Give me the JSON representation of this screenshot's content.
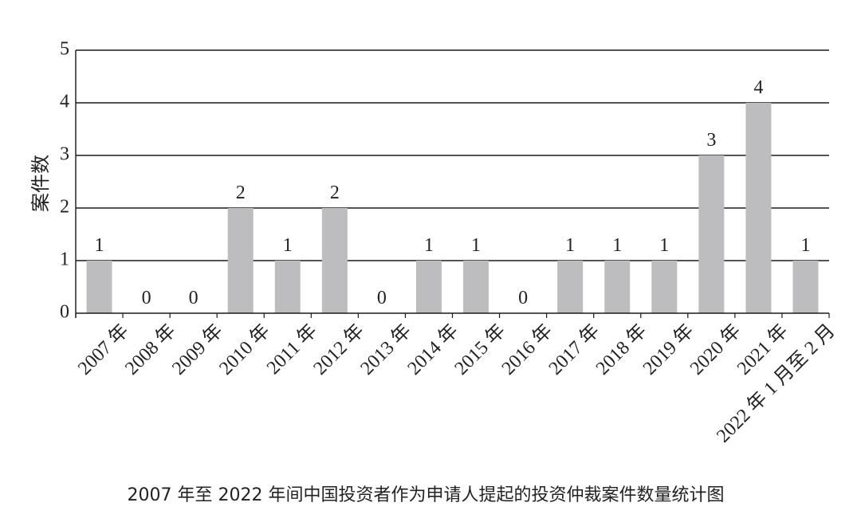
{
  "chart_data": {
    "type": "bar",
    "categories": [
      "2007 年",
      "2008 年",
      "2009 年",
      "2010 年",
      "2011 年",
      "2012 年",
      "2013 年",
      "2014 年",
      "2015 年",
      "2016 年",
      "2017 年",
      "2018 年",
      "2019 年",
      "2020 年",
      "2021 年",
      "2022 年 1 月至 2 月"
    ],
    "values": [
      1,
      0,
      0,
      2,
      1,
      2,
      0,
      1,
      1,
      0,
      1,
      1,
      1,
      3,
      4,
      1
    ],
    "ylabel": "案件数",
    "xlabel": "",
    "ylim": [
      0,
      5
    ],
    "yticks": [
      0,
      1,
      2,
      3,
      4,
      5
    ],
    "grid": true,
    "bar_color": "#bdbdbf",
    "caption": "2007 年至 2022 年间中国投资者作为申请人提起的投资仲裁案件数量统计图"
  }
}
